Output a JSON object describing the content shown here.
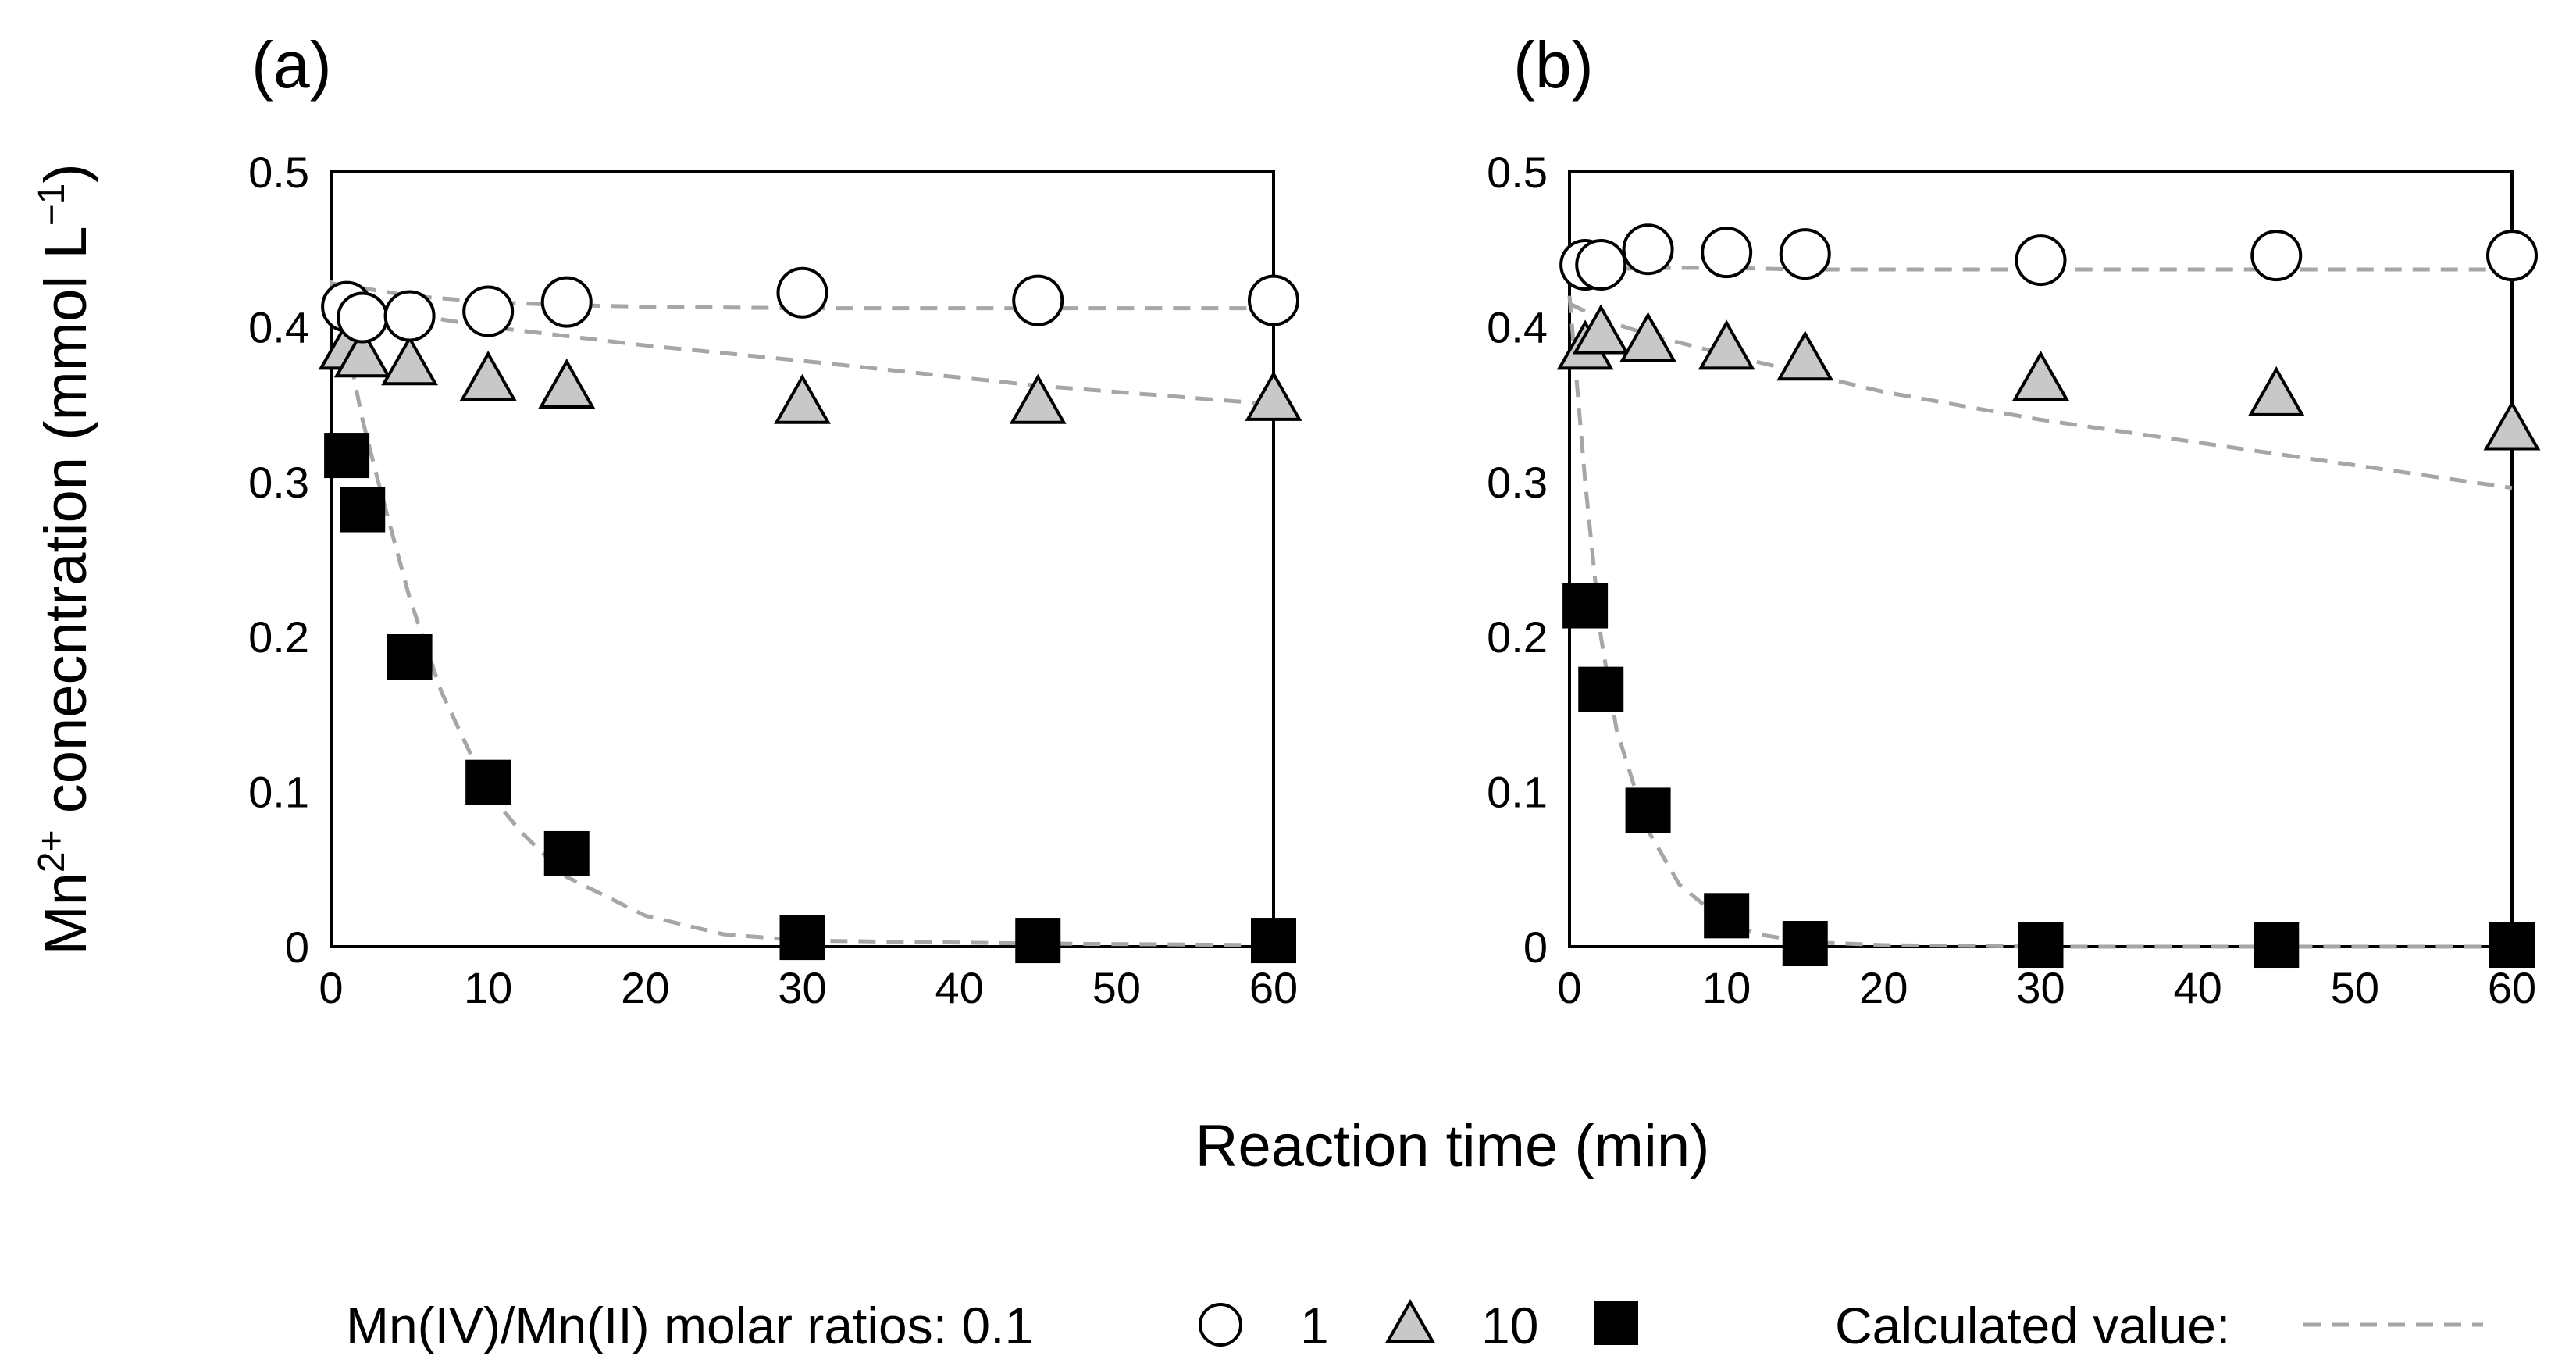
{
  "figure": {
    "ylabel_main": "Mn",
    "ylabel_sup": "2+",
    "ylabel_rest": " conecntration (mmol L",
    "ylabel_unit_sup": "−1",
    "ylabel_close": ")",
    "xlabel": "Reaction time (min)",
    "legend": {
      "prefix": "Mn(IV)/Mn(II) molar ratios: 0.1",
      "ratio_1": "1",
      "ratio_10": "10",
      "calculated": "Calculated value:"
    }
  },
  "colors": {
    "circle_fill": "#ffffff",
    "triangle_fill": "#c8c8c8",
    "square_fill": "#000000",
    "fit_line": "#a6a6a6"
  },
  "chart_data": [
    {
      "type": "scatter",
      "panel_label": "(a)",
      "xlim": [
        0,
        60
      ],
      "ylim": [
        0,
        0.5
      ],
      "xticks": [
        "0",
        "10",
        "20",
        "30",
        "40",
        "50",
        "60"
      ],
      "yticks": [
        "0",
        "0.1",
        "0.2",
        "0.3",
        "0.4",
        "0.5"
      ],
      "series": [
        {
          "name": "0.1",
          "marker": "circle",
          "x": [
            1,
            2,
            5,
            10,
            15,
            30,
            45,
            60
          ],
          "y": [
            0.413,
            0.406,
            0.407,
            0.41,
            0.416,
            0.422,
            0.417,
            0.417
          ]
        },
        {
          "name": "1",
          "marker": "triangle",
          "x": [
            1,
            2,
            5,
            10,
            15,
            30,
            45,
            60
          ],
          "y": [
            0.385,
            0.38,
            0.375,
            0.365,
            0.36,
            0.35,
            0.35,
            0.352
          ]
        },
        {
          "name": "10",
          "marker": "square",
          "x": [
            1,
            2,
            5,
            10,
            15,
            30,
            45,
            60
          ],
          "y": [
            0.317,
            0.282,
            0.187,
            0.106,
            0.06,
            0.006,
            0.004,
            0.004
          ]
        }
      ],
      "fits": [
        {
          "x": [
            0,
            2,
            5,
            10,
            15,
            20,
            30,
            45,
            60
          ],
          "y": [
            0.428,
            0.425,
            0.42,
            0.416,
            0.414,
            0.413,
            0.412,
            0.412,
            0.412
          ]
        },
        {
          "x": [
            0,
            2,
            5,
            10,
            15,
            20,
            30,
            45,
            60
          ],
          "y": [
            0.42,
            0.415,
            0.408,
            0.4,
            0.394,
            0.388,
            0.378,
            0.362,
            0.35
          ]
        },
        {
          "x": [
            0,
            1,
            2,
            3,
            5,
            7,
            10,
            12,
            15,
            20,
            25,
            30,
            45,
            60
          ],
          "y": [
            0.43,
            0.39,
            0.34,
            0.3,
            0.225,
            0.165,
            0.1,
            0.075,
            0.045,
            0.02,
            0.008,
            0.004,
            0.002,
            0.001
          ]
        }
      ]
    },
    {
      "type": "scatter",
      "panel_label": "(b)",
      "xlim": [
        0,
        60
      ],
      "ylim": [
        0,
        0.5
      ],
      "xticks": [
        "0",
        "10",
        "20",
        "30",
        "40",
        "50",
        "60"
      ],
      "yticks": [
        "0",
        "0.1",
        "0.2",
        "0.3",
        "0.4",
        "0.5"
      ],
      "series": [
        {
          "name": "0.1",
          "marker": "circle",
          "x": [
            1,
            2,
            5,
            10,
            15,
            30,
            45,
            60
          ],
          "y": [
            0.44,
            0.44,
            0.45,
            0.448,
            0.447,
            0.443,
            0.446,
            0.446
          ]
        },
        {
          "name": "1",
          "marker": "triangle",
          "x": [
            1,
            2,
            5,
            10,
            15,
            30,
            45,
            60
          ],
          "y": [
            0.385,
            0.395,
            0.39,
            0.385,
            0.378,
            0.365,
            0.355,
            0.333
          ]
        },
        {
          "name": "10",
          "marker": "square",
          "x": [
            1,
            2,
            5,
            10,
            15,
            30,
            45,
            60
          ],
          "y": [
            0.22,
            0.166,
            0.088,
            0.02,
            0.002,
            0.001,
            0.001,
            0.001
          ]
        }
      ],
      "fits": [
        {
          "x": [
            0,
            2,
            5,
            10,
            15,
            20,
            30,
            45,
            60
          ],
          "y": [
            0.435,
            0.437,
            0.438,
            0.438,
            0.437,
            0.437,
            0.437,
            0.437,
            0.437
          ]
        },
        {
          "x": [
            0,
            2,
            5,
            10,
            15,
            20,
            30,
            45,
            60
          ],
          "y": [
            0.415,
            0.405,
            0.395,
            0.382,
            0.37,
            0.358,
            0.34,
            0.318,
            0.296
          ]
        },
        {
          "x": [
            0,
            1,
            2,
            3,
            5,
            7,
            10,
            12,
            15,
            20,
            30,
            45,
            60
          ],
          "y": [
            0.42,
            0.3,
            0.2,
            0.14,
            0.075,
            0.04,
            0.015,
            0.008,
            0.003,
            0.001,
            0.0,
            0.0,
            0.0
          ]
        }
      ]
    }
  ]
}
